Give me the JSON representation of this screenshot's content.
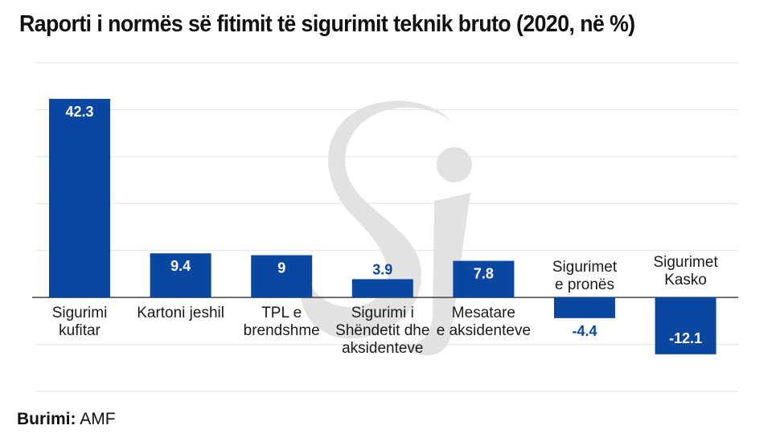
{
  "chart_data": {
    "type": "bar",
    "title": "Raporti i normës së fitimit të sigurimit teknik bruto (2020, në %)",
    "categories": [
      [
        "Sigurimi",
        "kufitar"
      ],
      [
        "Kartoni jeshil"
      ],
      [
        "TPL e",
        "brendshme"
      ],
      [
        "Sigurimi i",
        "Shëndetit dhe",
        "aksidenteve"
      ],
      [
        "Mesatare",
        "e aksidenteve"
      ],
      [
        "Sigurimet",
        "e pronës"
      ],
      [
        "Sigurimet",
        "Kasko"
      ]
    ],
    "values": [
      42.3,
      9.4,
      9,
      3.9,
      7.8,
      -4.4,
      -12.1
    ],
    "value_labels": [
      "42.3",
      "9.4",
      "9",
      "3.9",
      "7.8",
      "-4.4",
      "-12.1"
    ],
    "ylim": [
      -20,
      50
    ],
    "ytick_step": 10,
    "grid": true,
    "xlabel": "",
    "ylabel": "",
    "bar_color": "#0a47a0"
  },
  "source": {
    "label": "Burimi:",
    "value": "AMF"
  }
}
